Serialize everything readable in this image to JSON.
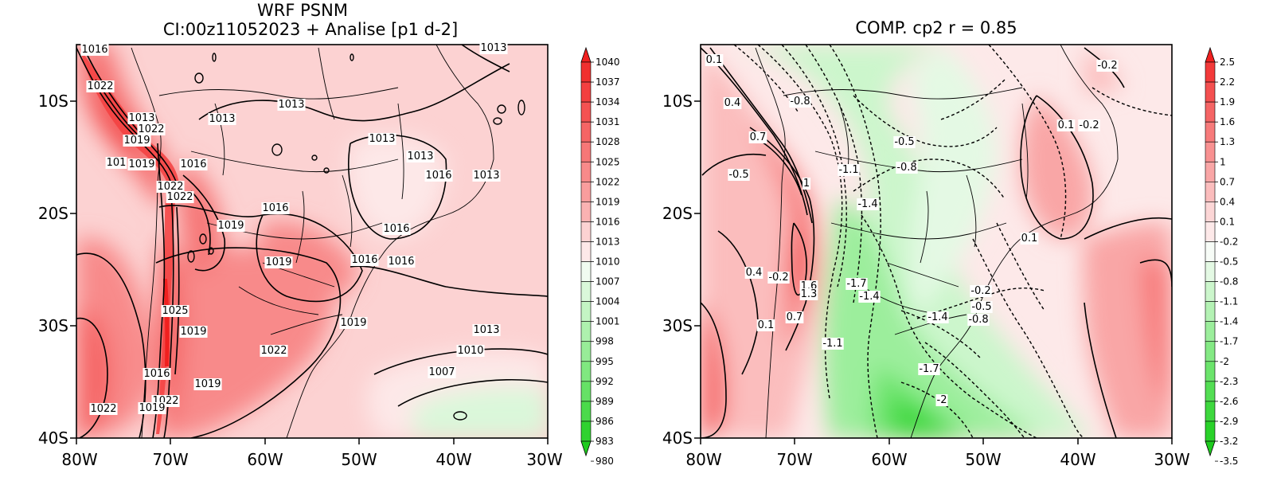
{
  "left_panel": {
    "title_line1": "WRF PSNM",
    "title_line2": "CI:00z11052023 + Analise  [p1 d-2]",
    "x_ticks": [
      "80W",
      "70W",
      "60W",
      "50W",
      "40W",
      "30W"
    ],
    "y_ticks": [
      "10S",
      "20S",
      "30S",
      "40S"
    ],
    "colorbar": {
      "labels": [
        "1040",
        "1037",
        "1034",
        "1031",
        "1028",
        "1025",
        "1022",
        "1019",
        "1016",
        "1013",
        "1010",
        "1007",
        "1004",
        "1001",
        "998",
        "995",
        "992",
        "989",
        "986",
        "983",
        "980"
      ],
      "colors": [
        "#f0201f",
        "#f0302f",
        "#f34040",
        "#f45252",
        "#f56565",
        "#f67777",
        "#f88a8a",
        "#f99d9d",
        "#fab2b2",
        "#fcd2d2",
        "#fde8e8",
        "#f0fbf0",
        "#daf8da",
        "#c4f5c4",
        "#aef1ae",
        "#98ec98",
        "#80e880",
        "#66e166",
        "#4bda4b",
        "#30d230",
        "#1ecc1e"
      ]
    },
    "contour_labels": [
      {
        "text": "1016"
      },
      {
        "text": "1022"
      },
      {
        "text": "1013"
      },
      {
        "text": "1022"
      },
      {
        "text": "1019"
      },
      {
        "text": "101"
      },
      {
        "text": "1019"
      },
      {
        "text": "1016"
      },
      {
        "text": "1022"
      },
      {
        "text": "1022"
      },
      {
        "text": "1013"
      },
      {
        "text": "1013"
      },
      {
        "text": "1013"
      },
      {
        "text": "1013"
      },
      {
        "text": "1016"
      },
      {
        "text": "1013"
      },
      {
        "text": "1016"
      },
      {
        "text": "1019"
      },
      {
        "text": "1016"
      },
      {
        "text": "1019"
      },
      {
        "text": "1016"
      },
      {
        "text": "1016"
      },
      {
        "text": "1025"
      },
      {
        "text": "1019"
      },
      {
        "text": "1019"
      },
      {
        "text": "1022"
      },
      {
        "text": "1013"
      },
      {
        "text": "1010"
      },
      {
        "text": "1007"
      },
      {
        "text": "1016"
      },
      {
        "text": "1019"
      },
      {
        "text": "1022"
      },
      {
        "text": "1019"
      },
      {
        "text": "1022"
      },
      {
        "text": "1013"
      }
    ]
  },
  "right_panel": {
    "title": "COMP. cp2  r =  0.85",
    "x_ticks": [
      "80W",
      "70W",
      "60W",
      "50W",
      "40W",
      "30W"
    ],
    "y_ticks": [
      "10S",
      "20S",
      "30S",
      "40S"
    ],
    "colorbar": {
      "labels": [
        "2.5",
        "2.2",
        "1.9",
        "1.6",
        "1.3",
        "1",
        "0.7",
        "0.4",
        "0.1",
        "-0.2",
        "-0.5",
        "-0.8",
        "-1.1",
        "-1.4",
        "-1.7",
        "-2",
        "-2.3",
        "-2.6",
        "-2.9",
        "-3.2",
        "-3.5"
      ],
      "colors": [
        "#f0201f",
        "#f33a3a",
        "#f45050",
        "#f56565",
        "#f77b7b",
        "#f89191",
        "#f9a6a6",
        "#fbbdbd",
        "#fcd6d6",
        "#fde9e9",
        "#f7fcf7",
        "#e4f9e4",
        "#ccf6cc",
        "#b4f2b4",
        "#9cee9c",
        "#84e984",
        "#6ce46c",
        "#54de54",
        "#3ed83e",
        "#2ad22a",
        "#1ecc1e"
      ]
    },
    "contour_labels": [
      {
        "text": "0.1"
      },
      {
        "text": "0.4"
      },
      {
        "text": "-0.8"
      },
      {
        "text": "0.7"
      },
      {
        "text": "-0.5"
      },
      {
        "text": "-0.5"
      },
      {
        "text": "-1.1"
      },
      {
        "text": "-0.8"
      },
      {
        "text": "1"
      },
      {
        "text": "-1.4"
      },
      {
        "text": "-0.2"
      },
      {
        "text": "0.1"
      },
      {
        "text": "-0.2"
      },
      {
        "text": "0.1"
      },
      {
        "text": "0.4"
      },
      {
        "text": "-0.2"
      },
      {
        "text": "1.6"
      },
      {
        "text": "1.3"
      },
      {
        "text": "-1.7"
      },
      {
        "text": "-1.4"
      },
      {
        "text": "0.1"
      },
      {
        "text": "0.7"
      },
      {
        "text": "-1.1"
      },
      {
        "text": "-0.2"
      },
      {
        "text": "-0.5"
      },
      {
        "text": "-1.4"
      },
      {
        "text": "-0.8"
      },
      {
        "text": "-1.7"
      },
      {
        "text": "-2"
      }
    ]
  }
}
